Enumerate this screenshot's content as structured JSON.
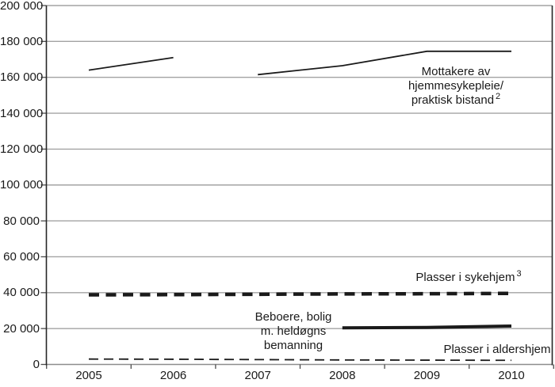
{
  "chart_data": {
    "type": "line",
    "title": "",
    "xlabel": "",
    "ylabel": "",
    "x": [
      2005,
      2006,
      2007,
      2008,
      2009,
      2010
    ],
    "x_labels": [
      "2005",
      "2006",
      "2007",
      "2008",
      "2009",
      "2010"
    ],
    "ylim": [
      0,
      200000
    ],
    "ytick_step": 20000,
    "ytick_labels": [
      "0",
      "20 000",
      "40 000",
      "60 000",
      "80 000",
      "100 000",
      "120 000",
      "140 000",
      "160 000",
      "180 000",
      "200 000"
    ],
    "grid": "horizontal",
    "legend_position": "inline-annotations",
    "series": [
      {
        "key": "mottakere",
        "name": "Mottakere av hjemmesykepleie/praktisk bistand",
        "footnote_marker": "2",
        "style": "solid-thin",
        "segments": [
          {
            "x": [
              2005,
              2006
            ],
            "values": [
              164000,
              171000
            ]
          },
          {
            "x": [
              2007,
              2008,
              2009,
              2010
            ],
            "values": [
              161500,
              166500,
              174500,
              174500
            ]
          }
        ]
      },
      {
        "key": "sykehjem",
        "name": "Plasser i sykehjem",
        "footnote_marker": "3",
        "style": "dashed-thick",
        "segments": [
          {
            "x": [
              2005,
              2006,
              2007,
              2008,
              2009,
              2010
            ],
            "values": [
              38800,
              38900,
              39100,
              39300,
              39400,
              39600
            ]
          }
        ]
      },
      {
        "key": "beboere",
        "name": "Beboere, bolig m. heldøgns bemanning",
        "footnote_marker": "",
        "style": "solid-thick",
        "segments": [
          {
            "x": [
              2008,
              2009,
              2010
            ],
            "values": [
              20400,
              20600,
              21400
            ]
          }
        ]
      },
      {
        "key": "aldershjem",
        "name": "Plasser i aldershjem",
        "footnote_marker": "",
        "style": "dashed-thin",
        "segments": [
          {
            "x": [
              2005,
              2006,
              2007,
              2008,
              2009,
              2010
            ],
            "values": [
              3000,
              2900,
              2700,
              2500,
              2400,
              2300
            ]
          }
        ]
      }
    ],
    "colors": {
      "line": "#1a1a1a",
      "grid": "#a3a3a3",
      "bottom_axis": "#8c8c8c",
      "axis": "#262626",
      "tick": "#4d4d4d",
      "text": "#1a1a1a",
      "background": "#ffffff"
    }
  },
  "annotations": {
    "mottakere": {
      "lines": [
        "Mottakere av",
        "hjemmesykepleie/",
        "praktisk bistand"
      ],
      "sup": "2"
    },
    "sykehjem": {
      "text": "Plasser i sykehjem",
      "sup": "3"
    },
    "beboere": {
      "lines": [
        "Beboere, bolig",
        "m. heldøgns",
        "bemanning"
      ]
    },
    "aldershjem": {
      "text": "Plasser i aldershjem"
    }
  }
}
